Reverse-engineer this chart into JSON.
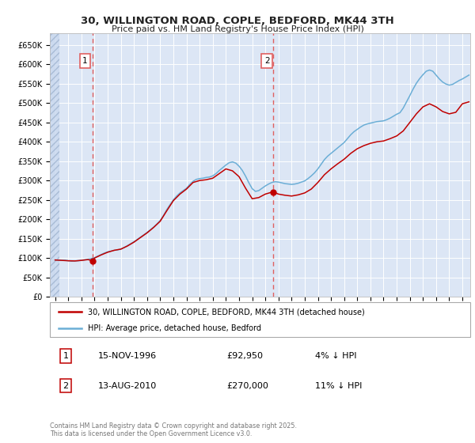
{
  "title": "30, WILLINGTON ROAD, COPLE, BEDFORD, MK44 3TH",
  "subtitle": "Price paid vs. HM Land Registry's House Price Index (HPI)",
  "ylim": [
    0,
    680000
  ],
  "yticks": [
    0,
    50000,
    100000,
    150000,
    200000,
    250000,
    300000,
    350000,
    400000,
    450000,
    500000,
    550000,
    600000,
    650000
  ],
  "ytick_labels": [
    "£0",
    "£50K",
    "£100K",
    "£150K",
    "£200K",
    "£250K",
    "£300K",
    "£350K",
    "£400K",
    "£450K",
    "£500K",
    "£550K",
    "£600K",
    "£650K"
  ],
  "xlim_start": 1993.6,
  "xlim_end": 2025.6,
  "plot_bg_color": "#dce6f5",
  "grid_color": "#ffffff",
  "hpi_line_color": "#6baed6",
  "price_line_color": "#c00000",
  "marker_color": "#c00000",
  "vline_color": "#e06060",
  "legend_label_price": "30, WILLINGTON ROAD, COPLE, BEDFORD, MK44 3TH (detached house)",
  "legend_label_hpi": "HPI: Average price, detached house, Bedford",
  "note1_label": "1",
  "note1_date": "15-NOV-1996",
  "note1_price": "£92,950",
  "note1_hpi": "4% ↓ HPI",
  "note1_year": 1996.88,
  "note1_price_val": 92950,
  "note2_label": "2",
  "note2_date": "13-AUG-2010",
  "note2_price": "£270,000",
  "note2_hpi": "11% ↓ HPI",
  "note2_year": 2010.62,
  "note2_price_val": 270000,
  "footer": "Contains HM Land Registry data © Crown copyright and database right 2025.\nThis data is licensed under the Open Government Licence v3.0.",
  "hpi_data": [
    [
      1994.0,
      95000
    ],
    [
      1994.25,
      94500
    ],
    [
      1994.5,
      94000
    ],
    [
      1994.75,
      94500
    ],
    [
      1995.0,
      93000
    ],
    [
      1995.25,
      92000
    ],
    [
      1995.5,
      92500
    ],
    [
      1995.75,
      93000
    ],
    [
      1996.0,
      94000
    ],
    [
      1996.25,
      95500
    ],
    [
      1996.5,
      97000
    ],
    [
      1996.75,
      98500
    ],
    [
      1997.0,
      101000
    ],
    [
      1997.25,
      105000
    ],
    [
      1997.5,
      109000
    ],
    [
      1997.75,
      113000
    ],
    [
      1998.0,
      116000
    ],
    [
      1998.25,
      118000
    ],
    [
      1998.5,
      120000
    ],
    [
      1998.75,
      121000
    ],
    [
      1999.0,
      123000
    ],
    [
      1999.25,
      127000
    ],
    [
      1999.5,
      132000
    ],
    [
      1999.75,
      137000
    ],
    [
      2000.0,
      142000
    ],
    [
      2000.25,
      148000
    ],
    [
      2000.5,
      154000
    ],
    [
      2000.75,
      160000
    ],
    [
      2001.0,
      166000
    ],
    [
      2001.25,
      173000
    ],
    [
      2001.5,
      180000
    ],
    [
      2001.75,
      188000
    ],
    [
      2002.0,
      197000
    ],
    [
      2002.25,
      210000
    ],
    [
      2002.5,
      225000
    ],
    [
      2002.75,
      238000
    ],
    [
      2003.0,
      250000
    ],
    [
      2003.25,
      260000
    ],
    [
      2003.5,
      268000
    ],
    [
      2003.75,
      274000
    ],
    [
      2004.0,
      280000
    ],
    [
      2004.25,
      290000
    ],
    [
      2004.5,
      298000
    ],
    [
      2004.75,
      303000
    ],
    [
      2005.0,
      305000
    ],
    [
      2005.25,
      306000
    ],
    [
      2005.5,
      308000
    ],
    [
      2005.75,
      309000
    ],
    [
      2006.0,
      312000
    ],
    [
      2006.25,
      318000
    ],
    [
      2006.5,
      326000
    ],
    [
      2006.75,
      333000
    ],
    [
      2007.0,
      340000
    ],
    [
      2007.25,
      346000
    ],
    [
      2007.5,
      348000
    ],
    [
      2007.75,
      345000
    ],
    [
      2008.0,
      337000
    ],
    [
      2008.25,
      326000
    ],
    [
      2008.5,
      311000
    ],
    [
      2008.75,
      294000
    ],
    [
      2009.0,
      279000
    ],
    [
      2009.25,
      272000
    ],
    [
      2009.5,
      274000
    ],
    [
      2009.75,
      280000
    ],
    [
      2010.0,
      286000
    ],
    [
      2010.25,
      291000
    ],
    [
      2010.5,
      295000
    ],
    [
      2010.75,
      297000
    ],
    [
      2011.0,
      296000
    ],
    [
      2011.25,
      294000
    ],
    [
      2011.5,
      292000
    ],
    [
      2011.75,
      291000
    ],
    [
      2012.0,
      290000
    ],
    [
      2012.25,
      291000
    ],
    [
      2012.5,
      293000
    ],
    [
      2012.75,
      296000
    ],
    [
      2013.0,
      299000
    ],
    [
      2013.25,
      305000
    ],
    [
      2013.5,
      312000
    ],
    [
      2013.75,
      320000
    ],
    [
      2014.0,
      330000
    ],
    [
      2014.25,
      342000
    ],
    [
      2014.5,
      354000
    ],
    [
      2014.75,
      363000
    ],
    [
      2015.0,
      370000
    ],
    [
      2015.25,
      377000
    ],
    [
      2015.5,
      384000
    ],
    [
      2015.75,
      391000
    ],
    [
      2016.0,
      398000
    ],
    [
      2016.25,
      408000
    ],
    [
      2016.5,
      418000
    ],
    [
      2016.75,
      426000
    ],
    [
      2017.0,
      432000
    ],
    [
      2017.25,
      438000
    ],
    [
      2017.5,
      443000
    ],
    [
      2017.75,
      446000
    ],
    [
      2018.0,
      448000
    ],
    [
      2018.25,
      450000
    ],
    [
      2018.5,
      452000
    ],
    [
      2018.75,
      453000
    ],
    [
      2019.0,
      454000
    ],
    [
      2019.25,
      457000
    ],
    [
      2019.5,
      461000
    ],
    [
      2019.75,
      466000
    ],
    [
      2020.0,
      471000
    ],
    [
      2020.25,
      475000
    ],
    [
      2020.5,
      487000
    ],
    [
      2020.75,
      503000
    ],
    [
      2021.0,
      519000
    ],
    [
      2021.25,
      536000
    ],
    [
      2021.5,
      551000
    ],
    [
      2021.75,
      563000
    ],
    [
      2022.0,
      573000
    ],
    [
      2022.25,
      582000
    ],
    [
      2022.5,
      585000
    ],
    [
      2022.75,
      582000
    ],
    [
      2023.0,
      572000
    ],
    [
      2023.25,
      562000
    ],
    [
      2023.5,
      554000
    ],
    [
      2023.75,
      549000
    ],
    [
      2024.0,
      546000
    ],
    [
      2024.25,
      548000
    ],
    [
      2024.5,
      553000
    ],
    [
      2024.75,
      558000
    ],
    [
      2025.0,
      562000
    ],
    [
      2025.5,
      572000
    ]
  ],
  "price_data": [
    [
      1994.0,
      95000
    ],
    [
      1994.5,
      94000
    ],
    [
      1995.0,
      93000
    ],
    [
      1995.5,
      92500
    ],
    [
      1996.0,
      94000
    ],
    [
      1996.5,
      96000
    ],
    [
      1996.88,
      92950
    ],
    [
      1997.0,
      100000
    ],
    [
      1997.5,
      108000
    ],
    [
      1998.0,
      115000
    ],
    [
      1998.5,
      120000
    ],
    [
      1999.0,
      123000
    ],
    [
      1999.5,
      131000
    ],
    [
      2000.0,
      141000
    ],
    [
      2000.5,
      153000
    ],
    [
      2001.0,
      165000
    ],
    [
      2001.5,
      179000
    ],
    [
      2002.0,
      195000
    ],
    [
      2002.5,
      222000
    ],
    [
      2003.0,
      248000
    ],
    [
      2003.5,
      265000
    ],
    [
      2004.0,
      278000
    ],
    [
      2004.5,
      295000
    ],
    [
      2005.0,
      300000
    ],
    [
      2005.5,
      302000
    ],
    [
      2006.0,
      306000
    ],
    [
      2006.5,
      318000
    ],
    [
      2007.0,
      330000
    ],
    [
      2007.5,
      325000
    ],
    [
      2008.0,
      310000
    ],
    [
      2008.5,
      280000
    ],
    [
      2009.0,
      253000
    ],
    [
      2009.5,
      256000
    ],
    [
      2010.0,
      265000
    ],
    [
      2010.5,
      270000
    ],
    [
      2010.62,
      270000
    ],
    [
      2011.0,
      265000
    ],
    [
      2011.5,
      262000
    ],
    [
      2012.0,
      260000
    ],
    [
      2012.5,
      263000
    ],
    [
      2013.0,
      268000
    ],
    [
      2013.5,
      278000
    ],
    [
      2014.0,
      295000
    ],
    [
      2014.5,
      315000
    ],
    [
      2015.0,
      330000
    ],
    [
      2015.5,
      343000
    ],
    [
      2016.0,
      355000
    ],
    [
      2016.5,
      370000
    ],
    [
      2017.0,
      382000
    ],
    [
      2017.5,
      390000
    ],
    [
      2018.0,
      396000
    ],
    [
      2018.5,
      400000
    ],
    [
      2019.0,
      402000
    ],
    [
      2019.5,
      408000
    ],
    [
      2020.0,
      415000
    ],
    [
      2020.5,
      428000
    ],
    [
      2021.0,
      450000
    ],
    [
      2021.5,
      472000
    ],
    [
      2022.0,
      490000
    ],
    [
      2022.5,
      498000
    ],
    [
      2023.0,
      490000
    ],
    [
      2023.5,
      478000
    ],
    [
      2024.0,
      472000
    ],
    [
      2024.5,
      476000
    ],
    [
      2025.0,
      498000
    ],
    [
      2025.5,
      503000
    ]
  ]
}
